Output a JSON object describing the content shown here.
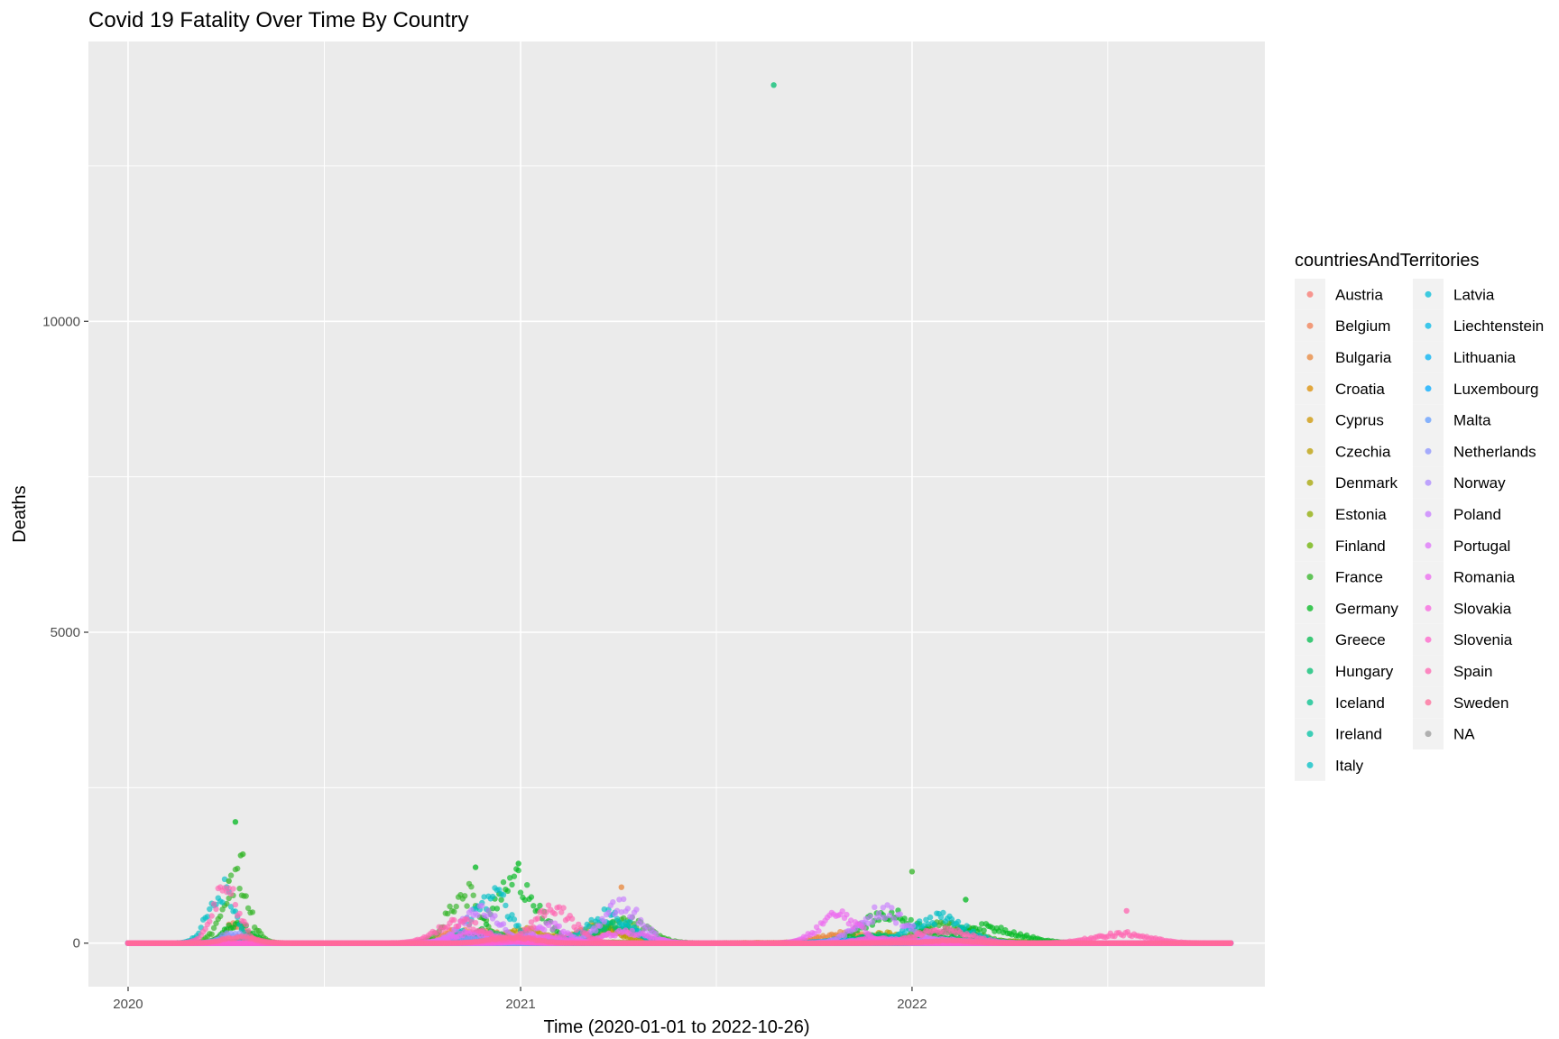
{
  "chart_data": {
    "type": "scatter",
    "title": "Covid 19 Fatality Over Time By Country",
    "xlabel": "Time (2020-01-01 to 2022-10-26)",
    "ylabel": "Deaths",
    "x_range": [
      "2019-11-25",
      "2022-11-26"
    ],
    "ylim": [
      -700,
      14500
    ],
    "x_ticks": [
      "2020",
      "2021",
      "2022"
    ],
    "x_tick_dates": [
      "2020-01-01",
      "2021-01-01",
      "2022-01-01"
    ],
    "y_ticks": [
      0,
      5000,
      10000
    ],
    "grid": true,
    "legend_title": "countriesAndTerritories",
    "legend_position": "right",
    "series": [
      {
        "name": "Austria",
        "color": "#F8766D",
        "peaks": [
          [
            "2020-04-05",
            30,
            12
          ],
          [
            "2020-11-25",
            120,
            20
          ],
          [
            "2021-12-01",
            60,
            20
          ]
        ]
      },
      {
        "name": "Belgium",
        "color": "#F27D52",
        "peaks": [
          [
            "2020-04-10",
            300,
            10
          ],
          [
            "2020-11-05",
            200,
            15
          ],
          [
            "2021-01-20",
            60,
            20
          ]
        ]
      },
      {
        "name": "Bulgaria",
        "color": "#E8853A",
        "peaks": [
          [
            "2020-12-01",
            160,
            20
          ],
          [
            "2021-04-01",
            200,
            20
          ],
          [
            "2021-11-01",
            150,
            25
          ]
        ]
      },
      {
        "name": "Croatia",
        "color": "#DC8E00",
        "peaks": [
          [
            "2020-12-15",
            90,
            18
          ],
          [
            "2021-11-25",
            70,
            20
          ]
        ]
      },
      {
        "name": "Cyprus",
        "color": "#CD9600",
        "peaks": [
          [
            "2021-08-10",
            6,
            25
          ],
          [
            "2022-01-20",
            8,
            25
          ]
        ]
      },
      {
        "name": "Czechia",
        "color": "#BB9D00",
        "peaks": [
          [
            "2021-01-05",
            200,
            20
          ],
          [
            "2021-03-15",
            280,
            18
          ],
          [
            "2021-12-05",
            150,
            20
          ]
        ]
      },
      {
        "name": "Denmark",
        "color": "#A6A400",
        "peaks": [
          [
            "2021-01-10",
            40,
            15
          ],
          [
            "2022-02-01",
            50,
            20
          ]
        ]
      },
      {
        "name": "Estonia",
        "color": "#8EAB00",
        "peaks": [
          [
            "2021-03-20",
            15,
            20
          ],
          [
            "2021-11-01",
            15,
            20
          ]
        ]
      },
      {
        "name": "Finland",
        "color": "#6BB100",
        "peaks": [
          [
            "2022-03-15",
            40,
            25
          ]
        ]
      },
      {
        "name": "France",
        "color": "#31B425",
        "peaks": [
          [
            "2020-04-10",
            1000,
            12
          ],
          [
            "2020-11-10",
            800,
            15
          ],
          [
            "2021-04-10",
            350,
            20
          ],
          [
            "2022-02-01",
            300,
            25
          ]
        ]
      },
      {
        "name": "Germany",
        "color": "#00B81F",
        "peaks": [
          [
            "2020-04-12",
            300,
            12
          ],
          [
            "2020-12-28",
            1000,
            20
          ],
          [
            "2021-12-10",
            450,
            25
          ],
          [
            "2022-03-10",
            250,
            30
          ]
        ]
      },
      {
        "name": "Greece",
        "color": "#00BB4E",
        "peaks": [
          [
            "2020-11-20",
            90,
            20
          ],
          [
            "2021-11-25",
            90,
            25
          ],
          [
            "2022-02-05",
            80,
            25
          ]
        ]
      },
      {
        "name": "Hungary",
        "color": "#00BE70",
        "peaks": [
          [
            "2020-12-01",
            150,
            20
          ],
          [
            "2021-03-30",
            280,
            20
          ],
          [
            "2021-12-01",
            120,
            20
          ]
        ]
      },
      {
        "name": "Iceland",
        "color": "#00C08B",
        "peaks": [
          [
            "2022-03-01",
            3,
            20
          ]
        ]
      },
      {
        "name": "Ireland",
        "color": "#00C1A3",
        "peaks": [
          [
            "2020-04-20",
            40,
            12
          ],
          [
            "2021-01-25",
            80,
            15
          ]
        ]
      },
      {
        "name": "Italy",
        "color": "#00BFC4",
        "peaks": [
          [
            "2020-03-28",
            850,
            12
          ],
          [
            "2020-12-05",
            750,
            18
          ],
          [
            "2021-03-25",
            450,
            20
          ],
          [
            "2022-01-25",
            400,
            25
          ]
        ]
      },
      {
        "name": "Latvia",
        "color": "#00BCD8",
        "peaks": [
          [
            "2021-01-20",
            30,
            20
          ],
          [
            "2021-11-05",
            40,
            20
          ]
        ]
      },
      {
        "name": "Liechtenstein",
        "color": "#00B8E7",
        "peaks": [
          [
            "2020-12-10",
            2,
            20
          ]
        ]
      },
      {
        "name": "Lithuania",
        "color": "#00B2F3",
        "peaks": [
          [
            "2020-12-25",
            50,
            20
          ],
          [
            "2021-10-25",
            40,
            20
          ]
        ]
      },
      {
        "name": "Luxembourg",
        "color": "#00A9FF",
        "peaks": [
          [
            "2020-12-10",
            10,
            20
          ]
        ]
      },
      {
        "name": "Malta",
        "color": "#619CFF",
        "peaks": [
          [
            "2021-03-15",
            3,
            20
          ]
        ]
      },
      {
        "name": "Netherlands",
        "color": "#8B93FF",
        "peaks": [
          [
            "2020-04-08",
            150,
            12
          ],
          [
            "2020-11-10",
            80,
            20
          ],
          [
            "2021-01-10",
            100,
            20
          ]
        ]
      },
      {
        "name": "Norway",
        "color": "#AC88FF",
        "peaks": [
          [
            "2022-01-25",
            20,
            20
          ]
        ]
      },
      {
        "name": "Poland",
        "color": "#C77CFF",
        "peaks": [
          [
            "2020-11-25",
            500,
            18
          ],
          [
            "2021-04-05",
            600,
            18
          ],
          [
            "2021-12-05",
            500,
            22
          ]
        ]
      },
      {
        "name": "Portugal",
        "color": "#DD71FA",
        "peaks": [
          [
            "2021-01-28",
            280,
            15
          ],
          [
            "2022-01-25",
            60,
            25
          ]
        ]
      },
      {
        "name": "Romania",
        "color": "#EC68EF",
        "peaks": [
          [
            "2020-11-20",
            180,
            20
          ],
          [
            "2021-04-10",
            180,
            20
          ],
          [
            "2021-10-25",
            450,
            18
          ]
        ]
      },
      {
        "name": "Slovakia",
        "color": "#F863DF",
        "peaks": [
          [
            "2021-01-25",
            100,
            20
          ],
          [
            "2021-12-01",
            80,
            20
          ]
        ]
      },
      {
        "name": "Slovenia",
        "color": "#FF61C9",
        "peaks": [
          [
            "2020-12-15",
            30,
            20
          ],
          [
            "2021-11-25",
            20,
            20
          ]
        ]
      },
      {
        "name": "Spain",
        "color": "#FF64B0",
        "peaks": [
          [
            "2020-04-01",
            850,
            12
          ],
          [
            "2020-11-05",
            350,
            20
          ],
          [
            "2021-02-01",
            550,
            18
          ],
          [
            "2022-01-30",
            200,
            25
          ],
          [
            "2022-07-15",
            150,
            25
          ]
        ]
      },
      {
        "name": "Sweden",
        "color": "#FF6A98",
        "peaks": [
          [
            "2020-04-15",
            100,
            15
          ],
          [
            "2020-12-25",
            100,
            20
          ],
          [
            "2022-02-05",
            40,
            20
          ]
        ]
      },
      {
        "name": "NA",
        "color": "#999999",
        "peaks": []
      }
    ],
    "outliers": [
      {
        "country": "Germany",
        "date": "2020-04-10",
        "deaths": 1950
      },
      {
        "country": "France",
        "date": "2020-04-15",
        "deaths": 1410
      },
      {
        "country": "France",
        "date": "2020-04-17",
        "deaths": 1430
      },
      {
        "country": "France",
        "date": "2020-04-04",
        "deaths": 1000
      },
      {
        "country": "Germany",
        "date": "2020-11-20",
        "deaths": 1220
      },
      {
        "country": "Germany",
        "date": "2020-12-30",
        "deaths": 1280
      },
      {
        "country": "Bulgaria",
        "date": "2021-04-05",
        "deaths": 900
      },
      {
        "country": "Hungary",
        "date": "2021-08-25",
        "deaths": 13800
      },
      {
        "country": "France",
        "date": "2022-01-01",
        "deaths": 1150
      },
      {
        "country": "Germany",
        "date": "2022-02-20",
        "deaths": 700
      },
      {
        "country": "Spain",
        "date": "2022-07-20",
        "deaths": 520
      }
    ]
  }
}
